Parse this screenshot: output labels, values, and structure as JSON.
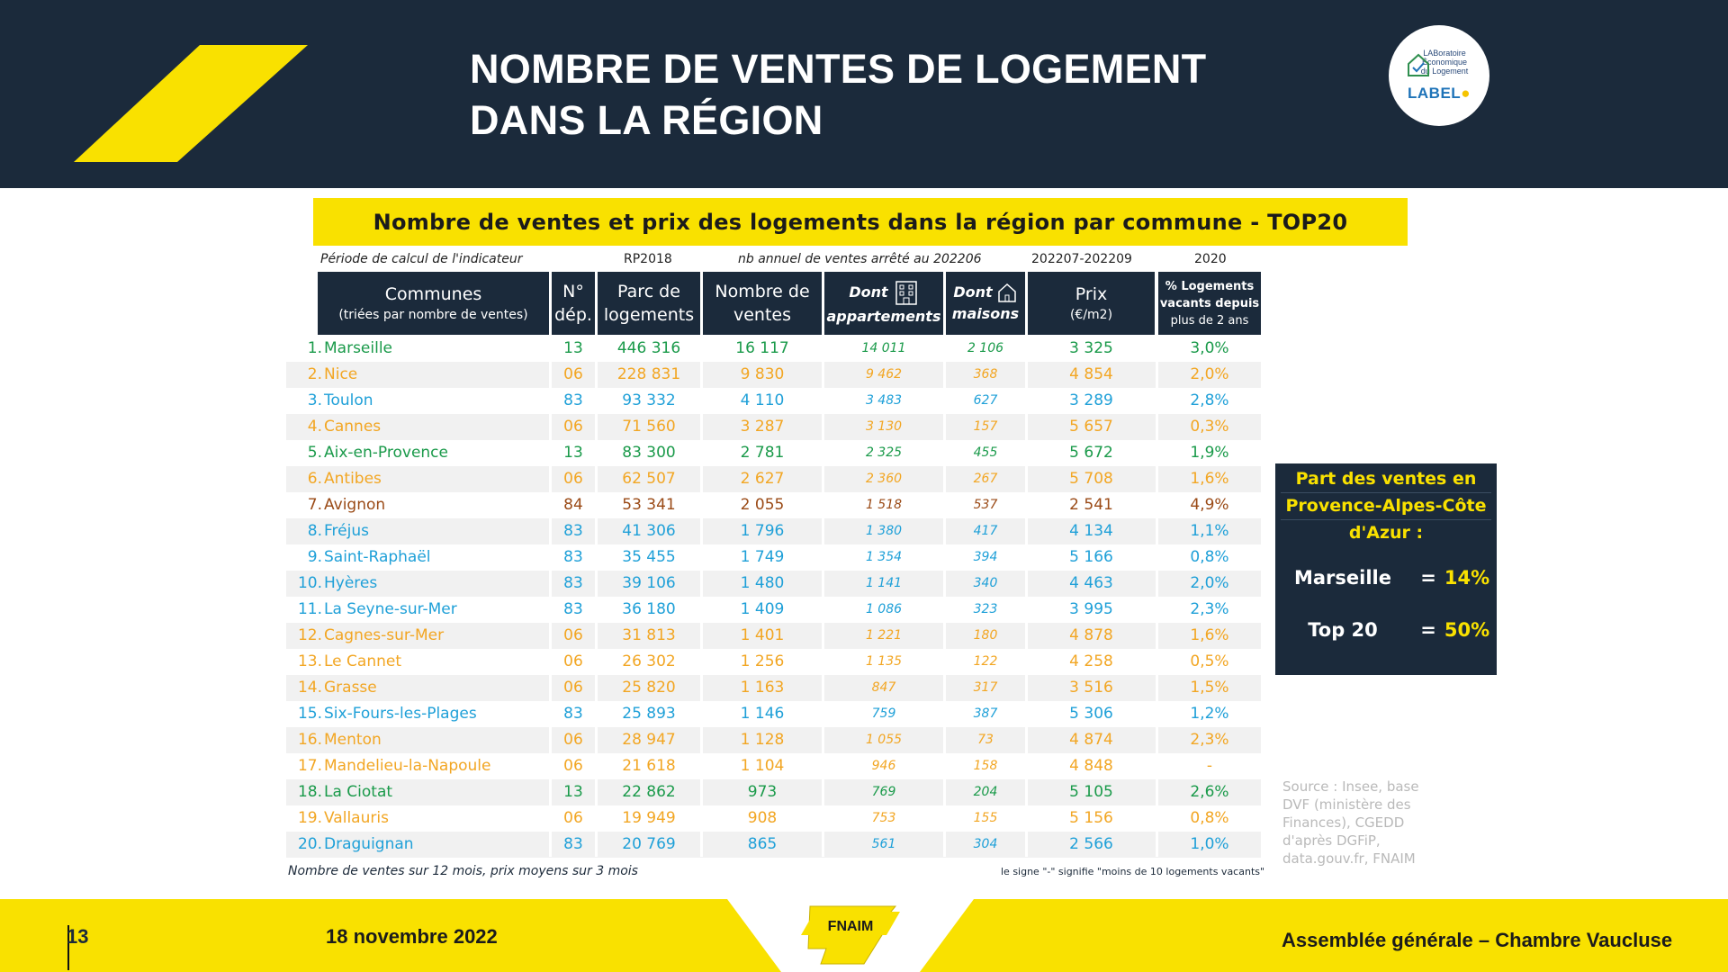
{
  "slide": {
    "title_line1": "NOMBRE DE VENTES DE LOGEMENT",
    "title_line2": "DANS LA RÉGION",
    "logo": {
      "small_lines": [
        "LABoratoire",
        "Économique",
        "du Logement"
      ],
      "brand": "LABEL",
      "icon": "house-check-icon"
    }
  },
  "banner": {
    "title": "Nombre de ventes et prix des logements dans la région par commune - TOP20"
  },
  "subheaders": {
    "period": "Période de calcul de l'indicateur",
    "rp": "RP2018",
    "sales_period": "nb annuel de ventes arrêté au 202206",
    "price_period": "202207-202209",
    "vacancy_year": "2020"
  },
  "table": {
    "headers": {
      "commune": "Communes",
      "commune_sub": "(triées par nombre de ventes)",
      "dep_line1": "N°",
      "dep_line2": "dép.",
      "parc_line1": "Parc de",
      "parc_line2": "logements",
      "ventes_line1": "Nombre de",
      "ventes_line2": "ventes",
      "appart_line1": "Dont",
      "appart_line2": "appartements",
      "maisons_line1": "Dont",
      "maisons_line2": "maisons",
      "prix_line1": "Prix",
      "prix_line2": "(€/m2)",
      "vacant_line1": "% Logements",
      "vacant_line2": "vacants depuis",
      "vacant_line3": "plus de 2 ans"
    },
    "dep_colors": {
      "13": "#1a9a4a",
      "06": "#f2a623",
      "83": "#1fa0d8",
      "84": "#9a4a16"
    },
    "rows": [
      {
        "rank": "1.",
        "commune": "Marseille",
        "dep": "13",
        "parc": "446 316",
        "ventes": "16 117",
        "appart": "14 011",
        "maisons": "2 106",
        "prix": "3 325",
        "vacant": "3,0%"
      },
      {
        "rank": "2.",
        "commune": "Nice",
        "dep": "06",
        "parc": "228 831",
        "ventes": "9 830",
        "appart": "9 462",
        "maisons": "368",
        "prix": "4 854",
        "vacant": "2,0%"
      },
      {
        "rank": "3.",
        "commune": "Toulon",
        "dep": "83",
        "parc": "93 332",
        "ventes": "4 110",
        "appart": "3 483",
        "maisons": "627",
        "prix": "3 289",
        "vacant": "2,8%"
      },
      {
        "rank": "4.",
        "commune": "Cannes",
        "dep": "06",
        "parc": "71 560",
        "ventes": "3 287",
        "appart": "3 130",
        "maisons": "157",
        "prix": "5 657",
        "vacant": "0,3%"
      },
      {
        "rank": "5.",
        "commune": "Aix-en-Provence",
        "dep": "13",
        "parc": "83 300",
        "ventes": "2 781",
        "appart": "2 325",
        "maisons": "455",
        "prix": "5 672",
        "vacant": "1,9%"
      },
      {
        "rank": "6.",
        "commune": "Antibes",
        "dep": "06",
        "parc": "62 507",
        "ventes": "2 627",
        "appart": "2 360",
        "maisons": "267",
        "prix": "5 708",
        "vacant": "1,6%"
      },
      {
        "rank": "7.",
        "commune": "Avignon",
        "dep": "84",
        "parc": "53 341",
        "ventes": "2 055",
        "appart": "1 518",
        "maisons": "537",
        "prix": "2 541",
        "vacant": "4,9%"
      },
      {
        "rank": "8.",
        "commune": "Fréjus",
        "dep": "83",
        "parc": "41 306",
        "ventes": "1 796",
        "appart": "1 380",
        "maisons": "417",
        "prix": "4 134",
        "vacant": "1,1%"
      },
      {
        "rank": "9.",
        "commune": "Saint-Raphaël",
        "dep": "83",
        "parc": "35 455",
        "ventes": "1 749",
        "appart": "1 354",
        "maisons": "394",
        "prix": "5 166",
        "vacant": "0,8%"
      },
      {
        "rank": "10.",
        "commune": "Hyères",
        "dep": "83",
        "parc": "39 106",
        "ventes": "1 480",
        "appart": "1 141",
        "maisons": "340",
        "prix": "4 463",
        "vacant": "2,0%"
      },
      {
        "rank": "11.",
        "commune": "La Seyne-sur-Mer",
        "dep": "83",
        "parc": "36 180",
        "ventes": "1 409",
        "appart": "1 086",
        "maisons": "323",
        "prix": "3 995",
        "vacant": "2,3%"
      },
      {
        "rank": "12.",
        "commune": "Cagnes-sur-Mer",
        "dep": "06",
        "parc": "31 813",
        "ventes": "1 401",
        "appart": "1 221",
        "maisons": "180",
        "prix": "4 878",
        "vacant": "1,6%"
      },
      {
        "rank": "13.",
        "commune": "Le Cannet",
        "dep": "06",
        "parc": "26 302",
        "ventes": "1 256",
        "appart": "1 135",
        "maisons": "122",
        "prix": "4 258",
        "vacant": "0,5%"
      },
      {
        "rank": "14.",
        "commune": "Grasse",
        "dep": "06",
        "parc": "25 820",
        "ventes": "1 163",
        "appart": "847",
        "maisons": "317",
        "prix": "3 516",
        "vacant": "1,5%"
      },
      {
        "rank": "15.",
        "commune": "Six-Fours-les-Plages",
        "dep": "83",
        "parc": "25 893",
        "ventes": "1 146",
        "appart": "759",
        "maisons": "387",
        "prix": "5 306",
        "vacant": "1,2%"
      },
      {
        "rank": "16.",
        "commune": "Menton",
        "dep": "06",
        "parc": "28 947",
        "ventes": "1 128",
        "appart": "1 055",
        "maisons": "73",
        "prix": "4 874",
        "vacant": "2,3%"
      },
      {
        "rank": "17.",
        "commune": "Mandelieu-la-Napoule",
        "dep": "06",
        "parc": "21 618",
        "ventes": "1 104",
        "appart": "946",
        "maisons": "158",
        "prix": "4 848",
        "vacant": "-"
      },
      {
        "rank": "18.",
        "commune": "La Ciotat",
        "dep": "13",
        "parc": "22 862",
        "ventes": "973",
        "appart": "769",
        "maisons": "204",
        "prix": "5 105",
        "vacant": "2,6%"
      },
      {
        "rank": "19.",
        "commune": "Vallauris",
        "dep": "06",
        "parc": "19 949",
        "ventes": "908",
        "appart": "753",
        "maisons": "155",
        "prix": "5 156",
        "vacant": "0,8%"
      },
      {
        "rank": "20.",
        "commune": "Draguignan",
        "dep": "83",
        "parc": "20 769",
        "ventes": "865",
        "appart": "561",
        "maisons": "304",
        "prix": "2 566",
        "vacant": "1,0%"
      }
    ]
  },
  "notes": {
    "left": "Nombre de ventes sur 12 mois, prix moyens sur 3 mois",
    "right": "le signe \"-\" signifie \"moins de 10 logements vacants\""
  },
  "sidebox": {
    "title_line1": "Part des ventes en",
    "title_line2": "Provence-Alpes-Côte",
    "title_line3": "d'Azur :",
    "rows": [
      {
        "label": "Marseille",
        "eq": "=",
        "value": "14%"
      },
      {
        "label": "Top 20",
        "eq": "=",
        "value": "50%"
      }
    ]
  },
  "source": "Source : Insee, base DVF (ministère des Finances), CGEDD d'après DGFiP, data.gouv.fr, FNAIM",
  "footer": {
    "page": "13",
    "date": "18 novembre 2022",
    "logo": "FNAIM",
    "event": "Assemblée générale – Chambre Vaucluse"
  },
  "colors": {
    "navy": "#1b2a3b",
    "yellow": "#f9e100"
  }
}
